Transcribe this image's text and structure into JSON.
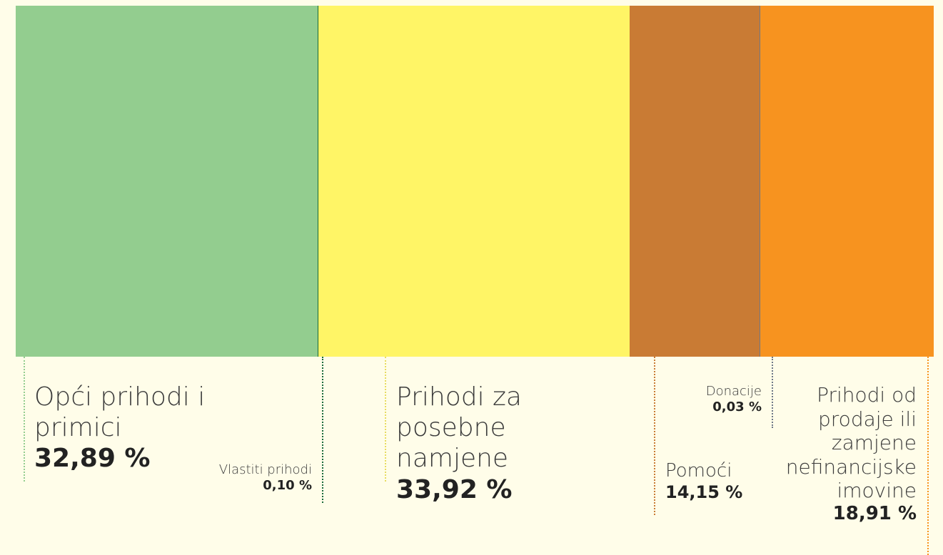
{
  "chart_data": {
    "type": "stacked-share-bar",
    "categories": [
      "Opći prihodi i primici",
      "Vlastiti prihodi",
      "Prihodi za posebne namjene",
      "Pomoći",
      "Donacije",
      "Prihodi od prodaje ili zamjene nefinancijske imovine"
    ],
    "values": [
      32.89,
      0.1,
      33.92,
      14.15,
      0.03,
      18.91
    ],
    "value_labels": [
      "32,89 %",
      "0,10 %",
      "33,92 %",
      "14,15 %",
      "0,03 %",
      "18,91 %"
    ],
    "colors": [
      "#93cd8f",
      "#18693a",
      "#fff566",
      "#c97b34",
      "#6e7888",
      "#f7931f"
    ]
  }
}
